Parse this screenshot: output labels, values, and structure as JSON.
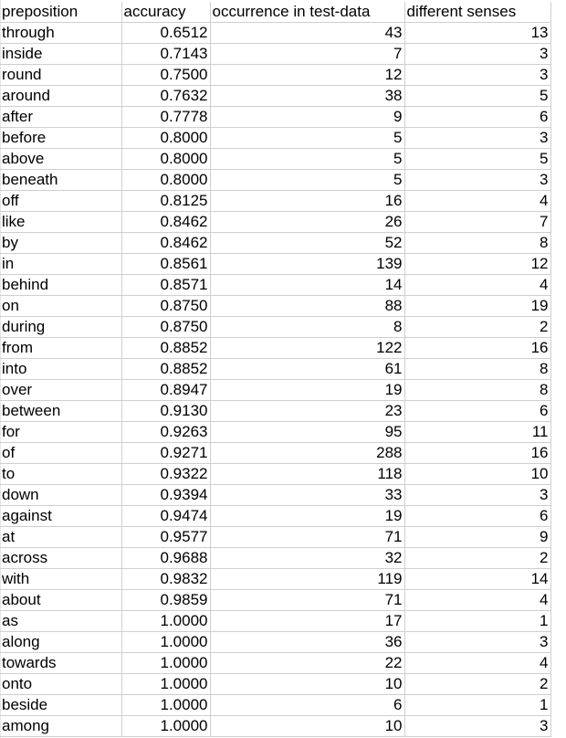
{
  "table": {
    "headers": [
      "preposition",
      "accuracy",
      "occurrence in test-data",
      "different senses"
    ],
    "rows": [
      [
        "through",
        "0.6512",
        "43",
        "13"
      ],
      [
        "inside",
        "0.7143",
        "7",
        "3"
      ],
      [
        "round",
        "0.7500",
        "12",
        "3"
      ],
      [
        "around",
        "0.7632",
        "38",
        "5"
      ],
      [
        "after",
        "0.7778",
        "9",
        "6"
      ],
      [
        "before",
        "0.8000",
        "5",
        "3"
      ],
      [
        "above",
        "0.8000",
        "5",
        "5"
      ],
      [
        "beneath",
        "0.8000",
        "5",
        "3"
      ],
      [
        "off",
        "0.8125",
        "16",
        "4"
      ],
      [
        "like",
        "0.8462",
        "26",
        "7"
      ],
      [
        "by",
        "0.8462",
        "52",
        "8"
      ],
      [
        "in",
        "0.8561",
        "139",
        "12"
      ],
      [
        "behind",
        "0.8571",
        "14",
        "4"
      ],
      [
        "on",
        "0.8750",
        "88",
        "19"
      ],
      [
        "during",
        "0.8750",
        "8",
        "2"
      ],
      [
        "from",
        "0.8852",
        "122",
        "16"
      ],
      [
        "into",
        "0.8852",
        "61",
        "8"
      ],
      [
        "over",
        "0.8947",
        "19",
        "8"
      ],
      [
        "between",
        "0.9130",
        "23",
        "6"
      ],
      [
        "for",
        "0.9263",
        "95",
        "11"
      ],
      [
        "of",
        "0.9271",
        "288",
        "16"
      ],
      [
        "to",
        "0.9322",
        "118",
        "10"
      ],
      [
        "down",
        "0.9394",
        "33",
        "3"
      ],
      [
        "against",
        "0.9474",
        "19",
        "6"
      ],
      [
        "at",
        "0.9577",
        "71",
        "9"
      ],
      [
        "across",
        "0.9688",
        "32",
        "2"
      ],
      [
        "with",
        "0.9832",
        "119",
        "14"
      ],
      [
        "about",
        "0.9859",
        "71",
        "4"
      ],
      [
        "as",
        "1.0000",
        "17",
        "1"
      ],
      [
        "along",
        "1.0000",
        "36",
        "3"
      ],
      [
        "towards",
        "1.0000",
        "22",
        "4"
      ],
      [
        "onto",
        "1.0000",
        "10",
        "2"
      ],
      [
        "beside",
        "1.0000",
        "6",
        "1"
      ],
      [
        "among",
        "1.0000",
        "10",
        "3"
      ]
    ]
  }
}
